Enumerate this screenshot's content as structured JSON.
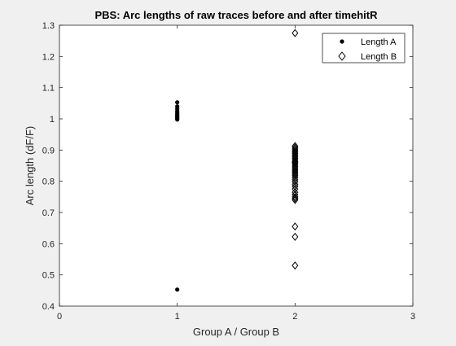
{
  "chart_data": {
    "type": "scatter",
    "title": "PBS: Arc lengths of raw traces before and after timehitR",
    "xlabel": "Group A / Group B",
    "ylabel": "Arc length (dF/F)",
    "xlim": [
      0,
      3
    ],
    "ylim": [
      0.4,
      1.3
    ],
    "xticks": [
      "0",
      "1",
      "2",
      "3"
    ],
    "yticks": [
      "0.4",
      "0.5",
      "0.6",
      "0.7",
      "0.8",
      "0.9",
      "1",
      "1.1",
      "1.2",
      "1.3"
    ],
    "grid": false,
    "legend_position": "top-right",
    "series": [
      {
        "name": "Length A",
        "marker": "dot",
        "color": "#000000",
        "x": [
          1,
          1,
          1,
          1,
          1,
          1,
          1,
          1,
          1,
          1,
          1,
          1
        ],
        "y": [
          1.053,
          1.04,
          1.032,
          1.025,
          1.02,
          1.015,
          1.012,
          1.008,
          1.005,
          1.002,
          0.998,
          0.453
        ]
      },
      {
        "name": "Length B",
        "marker": "diamond",
        "color": "#000000",
        "x": [
          2,
          2,
          2,
          2,
          2,
          2,
          2,
          2,
          2,
          2,
          2,
          2,
          2,
          2,
          2,
          2,
          2,
          2,
          2,
          2,
          2,
          2,
          2,
          2,
          2,
          2,
          2,
          2,
          2,
          2,
          2,
          2,
          2,
          2,
          2,
          2
        ],
        "y": [
          1.275,
          0.913,
          0.908,
          0.903,
          0.898,
          0.893,
          0.888,
          0.883,
          0.878,
          0.873,
          0.868,
          0.863,
          0.858,
          0.853,
          0.848,
          0.843,
          0.838,
          0.833,
          0.828,
          0.823,
          0.818,
          0.812,
          0.805,
          0.798,
          0.79,
          0.783,
          0.775,
          0.765,
          0.757,
          0.75,
          0.745,
          0.74,
          0.655,
          0.622,
          0.53,
          0.86
        ]
      }
    ]
  }
}
